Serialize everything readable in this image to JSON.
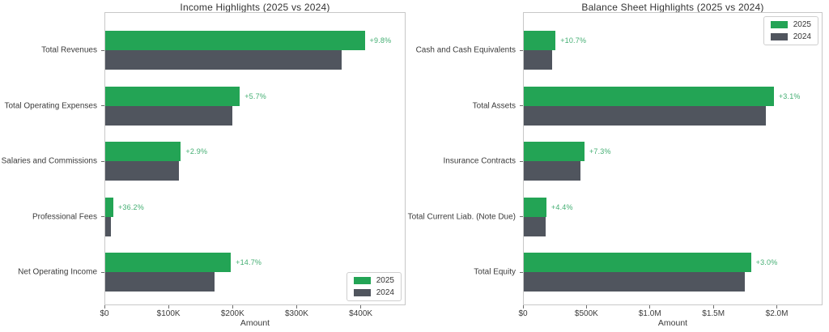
{
  "figure": {
    "background": "#ffffff"
  },
  "colors": {
    "series_2025": "#23a455",
    "series_2024": "#50555e",
    "pct_label": "#43ae72",
    "plot_border": "#c8c8c8",
    "tick": "#6e6e6e",
    "text": "#3b3b3b"
  },
  "legend": {
    "items": [
      {
        "label": "2025",
        "color_key": "series_2025"
      },
      {
        "label": "2024",
        "color_key": "series_2024"
      }
    ]
  },
  "chart_data": [
    {
      "type": "bar",
      "orientation": "horizontal",
      "title": "Income Highlights (2025 vs 2024)",
      "xlabel": "Amount",
      "ylabel": "",
      "grid": false,
      "legend_position": "lower right",
      "categories": [
        "Total Revenues",
        "Total Operating Expenses",
        "Salaries and Commissions",
        "Professional Fees",
        "Net Operating Income"
      ],
      "series": [
        {
          "name": "2025",
          "values": [
            405000,
            210000,
            118000,
            12600,
            196000
          ]
        },
        {
          "name": "2024",
          "values": [
            369000,
            198700,
            114700,
            9300,
            171000
          ]
        }
      ],
      "pct_labels": [
        "+9.8%",
        "+5.7%",
        "+2.9%",
        "+36.2%",
        "+14.7%"
      ],
      "xlim": [
        0,
        470000
      ],
      "xticks": [
        0,
        100000,
        200000,
        300000,
        400000
      ],
      "xtick_labels": [
        "$0",
        "$100K",
        "$200K",
        "$300K",
        "$400K"
      ]
    },
    {
      "type": "bar",
      "orientation": "horizontal",
      "title": "Balance Sheet Highlights (2025 vs 2024)",
      "xlabel": "Amount",
      "ylabel": "",
      "grid": false,
      "legend_position": "upper right",
      "categories": [
        "Cash and Cash Equivalents",
        "Total Assets",
        "Insurance Contracts",
        "Total Current Liab. (Note Due)",
        "Total Equity"
      ],
      "series": [
        {
          "name": "2025",
          "values": [
            250000,
            1970000,
            478000,
            178000,
            1790000
          ]
        },
        {
          "name": "2024",
          "values": [
            226000,
            1910000,
            445000,
            170000,
            1740000
          ]
        }
      ],
      "pct_labels": [
        "+10.7%",
        "+3.1%",
        "+7.3%",
        "+4.4%",
        "+3.0%"
      ],
      "xlim": [
        0,
        2360000
      ],
      "xticks": [
        0,
        500000,
        1000000,
        1500000,
        2000000
      ],
      "xtick_labels": [
        "$0",
        "$500K",
        "$1.0M",
        "$1.5M",
        "$2.0M"
      ]
    }
  ]
}
